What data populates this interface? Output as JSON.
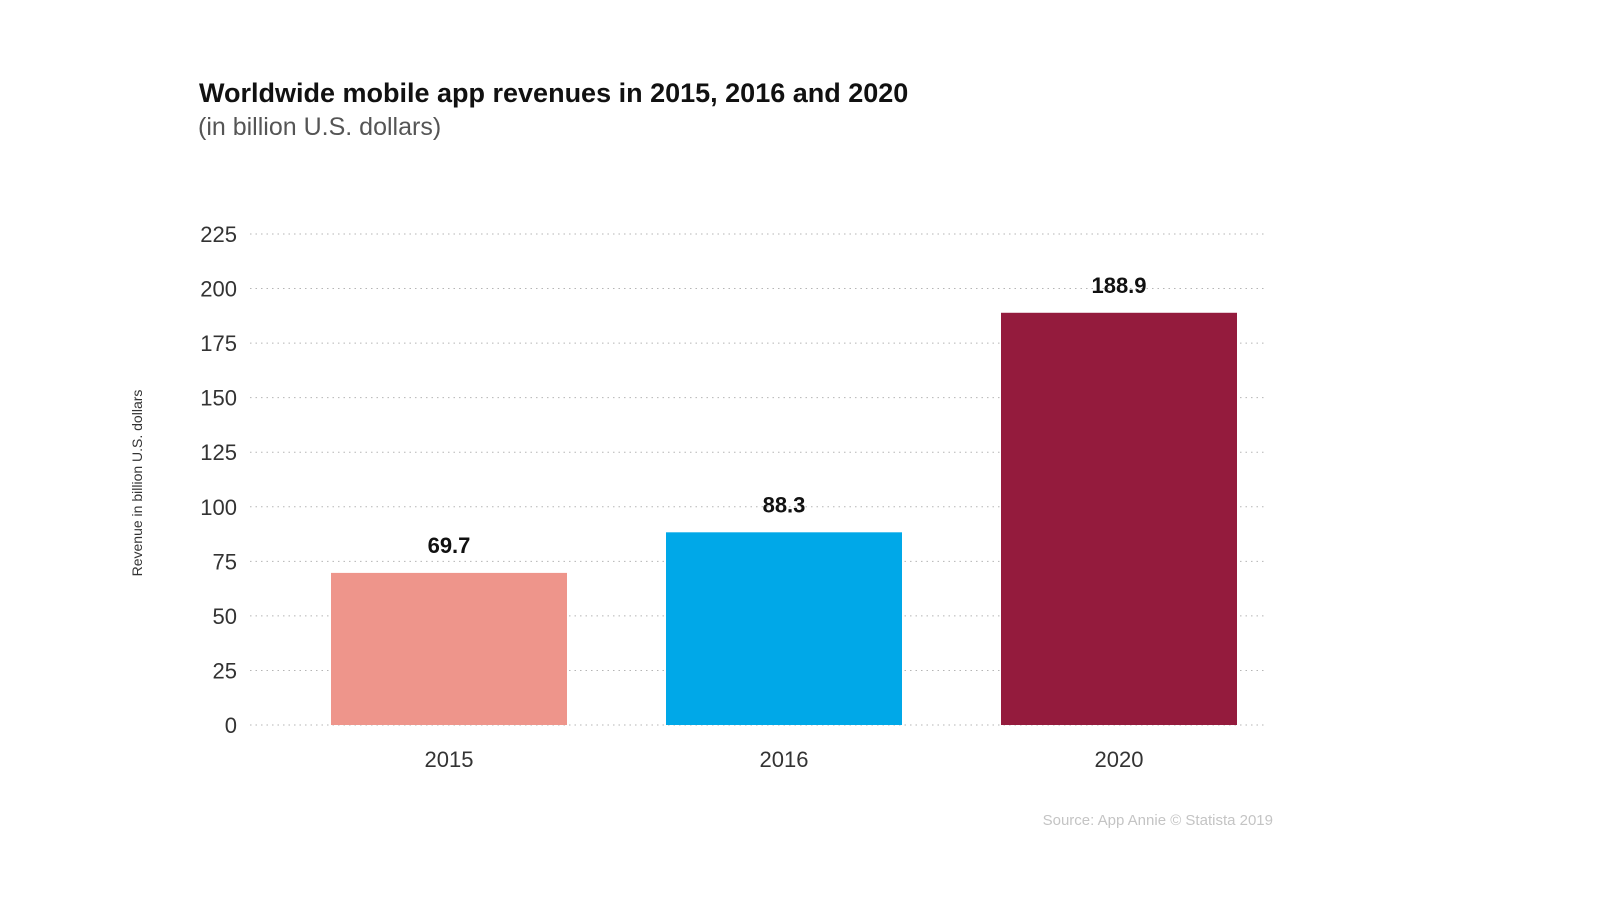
{
  "chart_data": {
    "type": "bar",
    "title": "Worldwide mobile app revenues in 2015, 2016 and 2020",
    "subtitle": "(in billion U.S.  dollars)",
    "ylabel": "Revenue in billion U.S. dollars",
    "xlabel": "",
    "categories": [
      "2015",
      "2016",
      "2020"
    ],
    "values": [
      69.7,
      88.3,
      188.9
    ],
    "value_labels": [
      "69.7",
      "88.3",
      "188.9"
    ],
    "colors": [
      "#ee958b",
      "#00a8e8",
      "#941b3d"
    ],
    "ylim": [
      0,
      225
    ],
    "yticks": [
      0,
      25,
      50,
      75,
      100,
      125,
      150,
      175,
      200,
      225
    ],
    "ytick_labels": [
      "0",
      "25",
      "50",
      "75",
      "100",
      "125",
      "150",
      "175",
      "200",
      "225"
    ],
    "grid": true,
    "legend": "none",
    "source": "Source: App Annie © Statista 2019"
  }
}
